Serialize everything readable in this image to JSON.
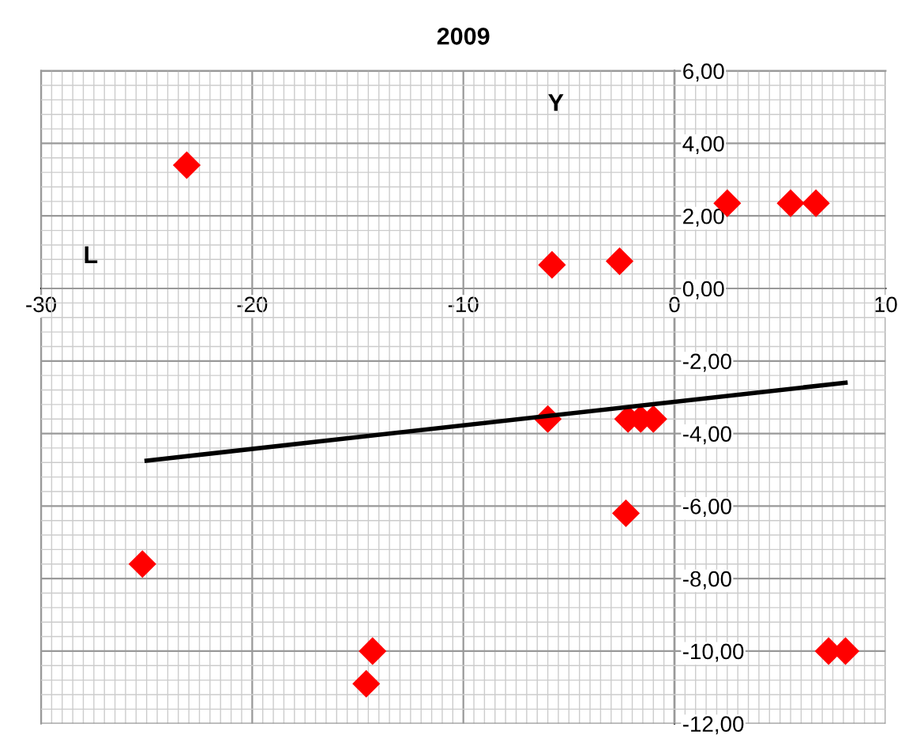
{
  "chart_data": {
    "type": "scatter",
    "title": "2009",
    "xlabel": "L",
    "ylabel": "Y",
    "series": [
      {
        "type": "scatter",
        "color": "#ff0000",
        "marker": "diamond",
        "x": [
          -23.1,
          2.5,
          5.5,
          6.7,
          -5.8,
          -2.6,
          -6.0,
          -2.2,
          -1.6,
          -1.0,
          -2.3,
          -25.2,
          -14.3,
          -14.6,
          7.3,
          8.1
        ],
        "values": [
          3.4,
          2.35,
          2.35,
          2.35,
          0.65,
          0.75,
          -3.6,
          -3.6,
          -3.6,
          -3.6,
          -6.2,
          -7.6,
          -10.0,
          -10.9,
          -10.0,
          -10.0
        ]
      },
      {
        "type": "line",
        "color": "#000000",
        "marker": "none",
        "line_style": "solid",
        "x": [
          -25.0,
          8.1
        ],
        "values": [
          -4.75,
          -2.6
        ]
      }
    ],
    "xlim": [
      -30,
      10
    ],
    "xticks": [
      -30,
      -20,
      -10,
      0,
      10
    ],
    "ylim": [
      -12,
      6
    ],
    "yticks": [
      {
        "value": -12,
        "label": "-12,00"
      },
      {
        "value": -10,
        "label": "-10,00"
      },
      {
        "value": -8,
        "label": "-8,00"
      },
      {
        "value": -6,
        "label": "-6,00"
      },
      {
        "value": -4,
        "label": "-4,00"
      },
      {
        "value": -2,
        "label": "-2,00"
      },
      {
        "value": 0,
        "label": "0,00"
      },
      {
        "value": 2,
        "label": "2,00"
      },
      {
        "value": 4,
        "label": "4,00"
      },
      {
        "value": 6,
        "label": "6,00"
      }
    ],
    "grid": true,
    "legend": false
  }
}
